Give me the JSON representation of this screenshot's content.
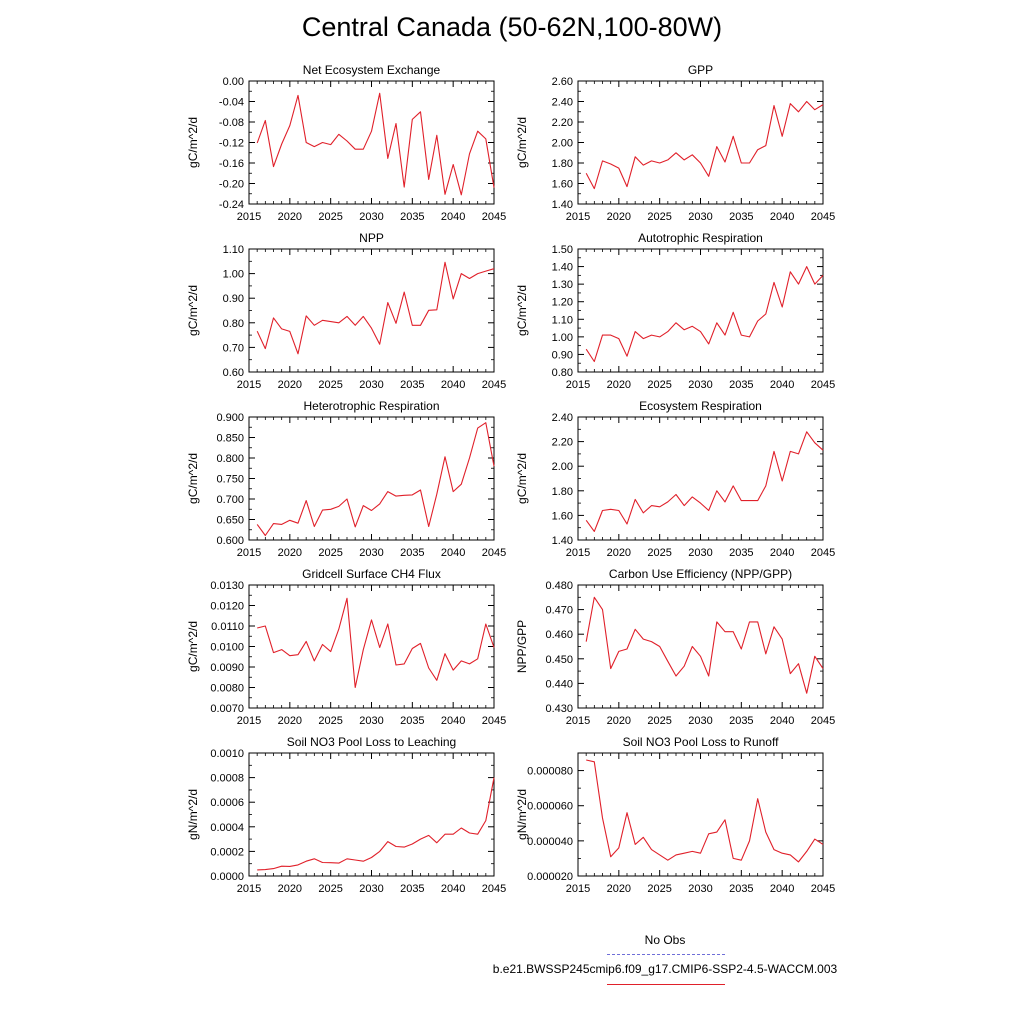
{
  "page_title": "Central Canada (50-62N,100-80W)",
  "legend": {
    "no_obs_label": "No Obs",
    "run_label": "b.e21.BWSSP245cmip6.f09_g17.CMIP6-SSP2-4.5-WACCM.003",
    "no_obs_color": "#6f6fd8",
    "run_color": "#e0202a"
  },
  "chart_data": [
    {
      "type": "line",
      "title": "Net Ecosystem Exchange",
      "ylabel": "gC/m^2/d",
      "xlim": [
        2015,
        2045
      ],
      "xticks": [
        "2015",
        "2020",
        "2025",
        "2030",
        "2035",
        "2040",
        "2045"
      ],
      "ylim": [
        -0.24,
        0.0
      ],
      "yticks": [
        "0.00",
        "-0.04",
        "-0.08",
        "-0.12",
        "-0.16",
        "-0.20",
        "-0.24"
      ],
      "x": [
        2016,
        2017,
        2018,
        2019,
        2020,
        2021,
        2022,
        2023,
        2024,
        2025,
        2026,
        2027,
        2028,
        2029,
        2030,
        2031,
        2032,
        2033,
        2034,
        2035,
        2036,
        2037,
        2038,
        2039,
        2040,
        2041,
        2042,
        2043,
        2044,
        2045
      ],
      "series": [
        {
          "values": [
            -0.121,
            -0.077,
            -0.167,
            -0.123,
            -0.087,
            -0.028,
            -0.12,
            -0.128,
            -0.12,
            -0.124,
            -0.104,
            -0.117,
            -0.133,
            -0.133,
            -0.098,
            -0.024,
            -0.151,
            -0.083,
            -0.207,
            -0.075,
            -0.06,
            -0.192,
            -0.106,
            -0.221,
            -0.163,
            -0.222,
            -0.142,
            -0.098,
            -0.113,
            -0.208
          ]
        }
      ]
    },
    {
      "type": "line",
      "title": "GPP",
      "ylabel": "gC/m^2/d",
      "xlim": [
        2015,
        2045
      ],
      "xticks": [
        "2015",
        "2020",
        "2025",
        "2030",
        "2035",
        "2040",
        "2045"
      ],
      "ylim": [
        1.4,
        2.6
      ],
      "yticks": [
        "2.60",
        "2.40",
        "2.20",
        "2.00",
        "1.80",
        "1.60",
        "1.40"
      ],
      "x": [
        2016,
        2017,
        2018,
        2019,
        2020,
        2021,
        2022,
        2023,
        2024,
        2025,
        2026,
        2027,
        2028,
        2029,
        2030,
        2031,
        2032,
        2033,
        2034,
        2035,
        2036,
        2037,
        2038,
        2039,
        2040,
        2041,
        2042,
        2043,
        2044,
        2045
      ],
      "series": [
        {
          "values": [
            1.7,
            1.55,
            1.82,
            1.79,
            1.75,
            1.57,
            1.86,
            1.78,
            1.82,
            1.8,
            1.83,
            1.9,
            1.83,
            1.88,
            1.8,
            1.67,
            1.96,
            1.81,
            2.06,
            1.8,
            1.8,
            1.93,
            1.97,
            2.36,
            2.06,
            2.38,
            2.3,
            2.4,
            2.32,
            2.37
          ]
        }
      ]
    },
    {
      "type": "line",
      "title": "NPP",
      "ylabel": "gC/m^2/d",
      "xlim": [
        2015,
        2045
      ],
      "xticks": [
        "2015",
        "2020",
        "2025",
        "2030",
        "2035",
        "2040",
        "2045"
      ],
      "ylim": [
        0.6,
        1.1
      ],
      "yticks": [
        "1.10",
        "1.00",
        "0.90",
        "0.80",
        "0.70",
        "0.60"
      ],
      "x": [
        2016,
        2017,
        2018,
        2019,
        2020,
        2021,
        2022,
        2023,
        2024,
        2025,
        2026,
        2027,
        2028,
        2029,
        2030,
        2031,
        2032,
        2033,
        2034,
        2035,
        2036,
        2037,
        2038,
        2039,
        2040,
        2041,
        2042,
        2043,
        2044,
        2045
      ],
      "series": [
        {
          "values": [
            0.766,
            0.695,
            0.82,
            0.775,
            0.765,
            0.674,
            0.828,
            0.79,
            0.81,
            0.805,
            0.8,
            0.826,
            0.79,
            0.826,
            0.778,
            0.713,
            0.882,
            0.798,
            0.925,
            0.79,
            0.79,
            0.851,
            0.853,
            1.046,
            0.897,
            1.0,
            0.98,
            1.0,
            1.01,
            1.02
          ]
        }
      ]
    },
    {
      "type": "line",
      "title": "Autotrophic Respiration",
      "ylabel": "gC/m^2/d",
      "xlim": [
        2015,
        2045
      ],
      "xticks": [
        "2015",
        "2020",
        "2025",
        "2030",
        "2035",
        "2040",
        "2045"
      ],
      "ylim": [
        0.8,
        1.5
      ],
      "yticks": [
        "1.50",
        "1.40",
        "1.30",
        "1.20",
        "1.10",
        "1.00",
        "0.90",
        "0.80"
      ],
      "x": [
        2016,
        2017,
        2018,
        2019,
        2020,
        2021,
        2022,
        2023,
        2024,
        2025,
        2026,
        2027,
        2028,
        2029,
        2030,
        2031,
        2032,
        2033,
        2034,
        2035,
        2036,
        2037,
        2038,
        2039,
        2040,
        2041,
        2042,
        2043,
        2044,
        2045
      ],
      "series": [
        {
          "values": [
            0.93,
            0.86,
            1.01,
            1.01,
            0.99,
            0.89,
            1.03,
            0.99,
            1.01,
            1.0,
            1.03,
            1.08,
            1.04,
            1.06,
            1.03,
            0.96,
            1.08,
            1.01,
            1.14,
            1.01,
            1.0,
            1.09,
            1.13,
            1.31,
            1.17,
            1.37,
            1.3,
            1.4,
            1.3,
            1.35
          ]
        }
      ]
    },
    {
      "type": "line",
      "title": "Heterotrophic Respiration",
      "ylabel": "gC/m^2/d",
      "xlim": [
        2015,
        2045
      ],
      "xticks": [
        "2015",
        "2020",
        "2025",
        "2030",
        "2035",
        "2040",
        "2045"
      ],
      "ylim": [
        0.6,
        0.9
      ],
      "yticks": [
        "0.900",
        "0.850",
        "0.800",
        "0.750",
        "0.700",
        "0.650",
        "0.600"
      ],
      "x": [
        2016,
        2017,
        2018,
        2019,
        2020,
        2021,
        2022,
        2023,
        2024,
        2025,
        2026,
        2027,
        2028,
        2029,
        2030,
        2031,
        2032,
        2033,
        2034,
        2035,
        2036,
        2037,
        2038,
        2039,
        2040,
        2041,
        2042,
        2043,
        2044,
        2045
      ],
      "series": [
        {
          "values": [
            0.638,
            0.611,
            0.64,
            0.638,
            0.648,
            0.641,
            0.696,
            0.633,
            0.673,
            0.675,
            0.682,
            0.7,
            0.632,
            0.684,
            0.672,
            0.688,
            0.718,
            0.707,
            0.709,
            0.71,
            0.722,
            0.633,
            0.712,
            0.803,
            0.718,
            0.736,
            0.8,
            0.873,
            0.886,
            0.78
          ]
        }
      ]
    },
    {
      "type": "line",
      "title": "Ecosystem Respiration",
      "ylabel": "gC/m^2/d",
      "xlim": [
        2015,
        2045
      ],
      "xticks": [
        "2015",
        "2020",
        "2025",
        "2030",
        "2035",
        "2040",
        "2045"
      ],
      "ylim": [
        1.4,
        2.4
      ],
      "yticks": [
        "2.40",
        "2.20",
        "2.00",
        "1.80",
        "1.60",
        "1.40"
      ],
      "x": [
        2016,
        2017,
        2018,
        2019,
        2020,
        2021,
        2022,
        2023,
        2024,
        2025,
        2026,
        2027,
        2028,
        2029,
        2030,
        2031,
        2032,
        2033,
        2034,
        2035,
        2036,
        2037,
        2038,
        2039,
        2040,
        2041,
        2042,
        2043,
        2044,
        2045
      ],
      "series": [
        {
          "values": [
            1.56,
            1.47,
            1.64,
            1.65,
            1.64,
            1.53,
            1.73,
            1.62,
            1.68,
            1.67,
            1.71,
            1.77,
            1.68,
            1.75,
            1.7,
            1.64,
            1.8,
            1.71,
            1.84,
            1.72,
            1.72,
            1.72,
            1.84,
            2.12,
            1.88,
            2.12,
            2.1,
            2.28,
            2.19,
            2.13
          ]
        }
      ]
    },
    {
      "type": "line",
      "title": "Gridcell Surface CH4 Flux",
      "ylabel": "gC/m^2/d",
      "xlim": [
        2015,
        2045
      ],
      "xticks": [
        "2015",
        "2020",
        "2025",
        "2030",
        "2035",
        "2040",
        "2045"
      ],
      "ylim": [
        0.007,
        0.013
      ],
      "yticks": [
        "0.0130",
        "0.0120",
        "0.0110",
        "0.0100",
        "0.0090",
        "0.0080",
        "0.0070"
      ],
      "x": [
        2016,
        2017,
        2018,
        2019,
        2020,
        2021,
        2022,
        2023,
        2024,
        2025,
        2026,
        2027,
        2028,
        2029,
        2030,
        2031,
        2032,
        2033,
        2034,
        2035,
        2036,
        2037,
        2038,
        2039,
        2040,
        2041,
        2042,
        2043,
        2044,
        2045
      ],
      "series": [
        {
          "values": [
            0.0109,
            0.011,
            0.0097,
            0.00985,
            0.00955,
            0.0096,
            0.01025,
            0.0093,
            0.0101,
            0.00975,
            0.01085,
            0.01235,
            0.008,
            0.00985,
            0.0113,
            0.00995,
            0.0111,
            0.0091,
            0.00915,
            0.0099,
            0.01015,
            0.00895,
            0.00835,
            0.00965,
            0.00885,
            0.0093,
            0.00915,
            0.0094,
            0.0111,
            0.00995
          ]
        }
      ]
    },
    {
      "type": "line",
      "title": "Carbon Use Efficiency (NPP/GPP)",
      "ylabel": "NPP/GPP",
      "xlim": [
        2015,
        2045
      ],
      "xticks": [
        "2015",
        "2020",
        "2025",
        "2030",
        "2035",
        "2040",
        "2045"
      ],
      "ylim": [
        0.43,
        0.48
      ],
      "yticks": [
        "0.480",
        "0.470",
        "0.460",
        "0.450",
        "0.440",
        "0.430"
      ],
      "x": [
        2016,
        2017,
        2018,
        2019,
        2020,
        2021,
        2022,
        2023,
        2024,
        2025,
        2026,
        2027,
        2028,
        2029,
        2030,
        2031,
        2032,
        2033,
        2034,
        2035,
        2036,
        2037,
        2038,
        2039,
        2040,
        2041,
        2042,
        2043,
        2044,
        2045
      ],
      "series": [
        {
          "values": [
            0.457,
            0.475,
            0.47,
            0.446,
            0.453,
            0.454,
            0.462,
            0.458,
            0.457,
            0.455,
            0.449,
            0.443,
            0.447,
            0.455,
            0.451,
            0.443,
            0.465,
            0.461,
            0.461,
            0.454,
            0.465,
            0.465,
            0.452,
            0.463,
            0.458,
            0.444,
            0.448,
            0.436,
            0.451,
            0.446
          ]
        }
      ]
    },
    {
      "type": "line",
      "title": "Soil NO3 Pool Loss to Leaching",
      "ylabel": "gN/m^2/d",
      "xlim": [
        2015,
        2045
      ],
      "xticks": [
        "2015",
        "2020",
        "2025",
        "2030",
        "2035",
        "2040",
        "2045"
      ],
      "ylim": [
        0.0,
        0.001
      ],
      "yticks": [
        "0.0010",
        "0.0008",
        "0.0006",
        "0.0004",
        "0.0002",
        "0.0000"
      ],
      "x": [
        2016,
        2017,
        2018,
        2019,
        2020,
        2021,
        2022,
        2023,
        2024,
        2025,
        2026,
        2027,
        2028,
        2029,
        2030,
        2031,
        2032,
        2033,
        2034,
        2035,
        2036,
        2037,
        2038,
        2039,
        2040,
        2041,
        2042,
        2043,
        2044,
        2045
      ],
      "series": [
        {
          "values": [
            5e-05,
            5.2e-05,
            6e-05,
            8e-05,
            7.8e-05,
            9e-05,
            0.00012,
            0.00014,
            0.00011,
            0.000108,
            0.000105,
            0.00014,
            0.00013,
            0.00012,
            0.00015,
            0.0002,
            0.00028,
            0.00024,
            0.000235,
            0.00026,
            0.0003,
            0.00033,
            0.00027,
            0.00034,
            0.00034,
            0.00039,
            0.00035,
            0.00034,
            0.00045,
            0.0008
          ]
        }
      ]
    },
    {
      "type": "line",
      "title": "Soil NO3 Pool Loss to Runoff",
      "ylabel": "gN/m^2/d",
      "xlim": [
        2015,
        2045
      ],
      "xticks": [
        "2015",
        "2020",
        "2025",
        "2030",
        "2035",
        "2040",
        "2045"
      ],
      "ylim": [
        2e-05,
        9e-05
      ],
      "yticks": [
        "0.000080",
        "0.000060",
        "0.000040",
        "0.000020"
      ],
      "x": [
        2016,
        2017,
        2018,
        2019,
        2020,
        2021,
        2022,
        2023,
        2024,
        2025,
        2026,
        2027,
        2028,
        2029,
        2030,
        2031,
        2032,
        2033,
        2034,
        2035,
        2036,
        2037,
        2038,
        2039,
        2040,
        2041,
        2042,
        2043,
        2044,
        2045
      ],
      "series": [
        {
          "values": [
            8.6e-05,
            8.5e-05,
            5.3e-05,
            3.1e-05,
            3.6e-05,
            5.6e-05,
            3.8e-05,
            4.2e-05,
            3.5e-05,
            3.2e-05,
            2.9e-05,
            3.2e-05,
            3.3e-05,
            3.4e-05,
            3.3e-05,
            4.4e-05,
            4.5e-05,
            5.2e-05,
            3e-05,
            2.9e-05,
            4e-05,
            6.4e-05,
            4.5e-05,
            3.5e-05,
            3.3e-05,
            3.2e-05,
            2.8e-05,
            3.4e-05,
            4.1e-05,
            3.8e-05
          ]
        }
      ]
    }
  ]
}
